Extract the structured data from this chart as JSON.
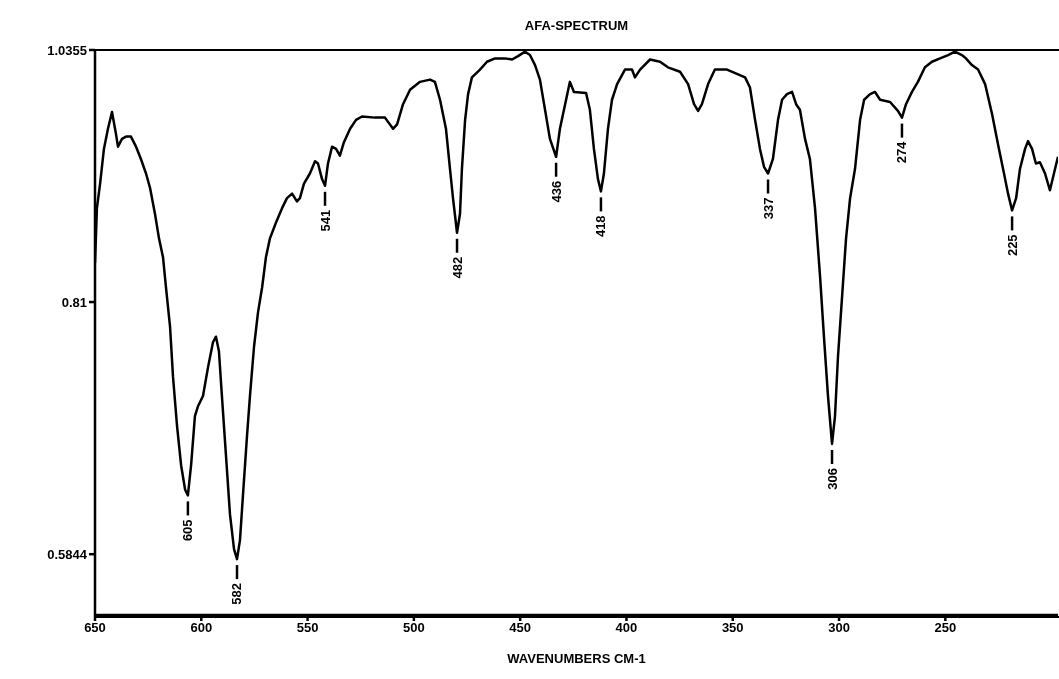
{
  "chart_data": {
    "type": "line",
    "title": "AFA-SPECTRUM",
    "xlabel": "WAVENUMBERS CM-1",
    "xlim": [
      650,
      197
    ],
    "xticks": [
      650,
      600,
      550,
      500,
      450,
      400,
      350,
      300,
      250
    ],
    "ylim": [
      0.53,
      1.0355
    ],
    "yticks": [
      0.5844,
      0.81,
      1.0355
    ],
    "x": [
      650,
      649.1,
      647.6,
      645.8,
      643.9,
      642.0,
      640.1,
      639.2,
      637.3,
      635.4,
      633.1,
      630.7,
      628.4,
      626.0,
      624.1,
      621.8,
      619.9,
      618.0,
      616.6,
      614.7,
      613.3,
      611.4,
      609.5,
      607.6,
      606.3,
      604.8,
      603.0,
      601.5,
      599.2,
      596.8,
      594.5,
      593.1,
      591.7,
      590.3,
      588.4,
      586.5,
      584.6,
      583.2,
      581.8,
      580.4,
      578.5,
      577.1,
      575.2,
      573.3,
      571.4,
      569.6,
      567.7,
      564.9,
      562.0,
      559.7,
      557.3,
      555.0,
      553.6,
      551.7,
      548.9,
      546.5,
      545.1,
      543.2,
      541.8,
      540.4,
      538.5,
      536.6,
      534.8,
      532.9,
      530.0,
      527.2,
      524.4,
      518.3,
      513.6,
      509.8,
      507.9,
      505.1,
      501.8,
      497.1,
      492.4,
      490.1,
      487.7,
      484.9,
      483.0,
      481.6,
      479.7,
      478.3,
      477.4,
      475.9,
      474.5,
      472.7,
      468.9,
      465.6,
      461.8,
      457.1,
      453.8,
      451.0,
      447.7,
      445.4,
      443.0,
      440.7,
      438.3,
      436.0,
      433.1,
      431.3,
      428.4,
      426.6,
      424.7,
      419.0,
      417.2,
      415.3,
      413.4,
      412.0,
      410.6,
      408.7,
      406.8,
      404.4,
      400.7,
      397.4,
      396.0,
      393.6,
      388.9,
      384.2,
      380.5,
      374.8,
      371.0,
      368.2,
      366.3,
      364.5,
      361.6,
      358.4,
      352.7,
      344.2,
      341.9,
      339.5,
      337.2,
      335.3,
      333.4,
      331.1,
      328.7,
      326.8,
      324.5,
      322.1,
      320.2,
      318.4,
      316.0,
      313.7,
      311.3,
      308.9,
      307.1,
      305.2,
      303.3,
      301.9,
      300.5,
      298.6,
      296.7,
      294.8,
      292.5,
      290.1,
      288.2,
      285.4,
      283.1,
      280.7,
      276.0,
      272.3,
      270.4,
      268.5,
      265.7,
      262.9,
      259.6,
      256.3,
      252.5,
      248.7,
      245.5,
      242.2,
      240.3,
      237.5,
      234.6,
      231.3,
      228.0,
      225.2,
      222.4,
      220.5,
      218.6,
      216.7,
      214.9,
      212.5,
      211.1,
      209.2,
      207.4,
      205.5,
      203.1,
      200.8,
      198.4,
      197.0
    ],
    "series": [
      {
        "color": "#000000",
        "values": [
          0.845,
          0.894,
          0.916,
          0.947,
          0.965,
          0.98,
          0.96,
          0.949,
          0.956,
          0.958,
          0.958,
          0.949,
          0.938,
          0.925,
          0.912,
          0.889,
          0.867,
          0.85,
          0.823,
          0.788,
          0.743,
          0.699,
          0.664,
          0.642,
          0.637,
          0.664,
          0.708,
          0.717,
          0.726,
          0.752,
          0.774,
          0.779,
          0.766,
          0.726,
          0.673,
          0.62,
          0.589,
          0.58,
          0.597,
          0.637,
          0.69,
          0.726,
          0.77,
          0.801,
          0.823,
          0.85,
          0.867,
          0.881,
          0.894,
          0.903,
          0.907,
          0.9,
          0.903,
          0.916,
          0.925,
          0.936,
          0.934,
          0.92,
          0.914,
          0.934,
          0.949,
          0.947,
          0.941,
          0.953,
          0.965,
          0.973,
          0.976,
          0.975,
          0.975,
          0.965,
          0.969,
          0.987,
          1.0,
          1.007,
          1.009,
          1.007,
          0.991,
          0.965,
          0.929,
          0.903,
          0.872,
          0.889,
          0.929,
          0.973,
          0.996,
          1.011,
          1.018,
          1.025,
          1.028,
          1.028,
          1.027,
          1.03,
          1.034,
          1.031,
          1.022,
          1.009,
          0.982,
          0.956,
          0.94,
          0.965,
          0.991,
          1.007,
          0.998,
          0.997,
          0.982,
          0.947,
          0.92,
          0.909,
          0.925,
          0.965,
          0.991,
          1.005,
          1.018,
          1.018,
          1.011,
          1.018,
          1.027,
          1.025,
          1.02,
          1.016,
          1.005,
          0.987,
          0.981,
          0.987,
          1.005,
          1.018,
          1.018,
          1.011,
          1.002,
          0.973,
          0.947,
          0.931,
          0.925,
          0.938,
          0.973,
          0.991,
          0.996,
          0.998,
          0.987,
          0.982,
          0.956,
          0.938,
          0.894,
          0.832,
          0.779,
          0.726,
          0.683,
          0.708,
          0.761,
          0.814,
          0.867,
          0.903,
          0.929,
          0.973,
          0.991,
          0.996,
          0.998,
          0.991,
          0.989,
          0.981,
          0.975,
          0.987,
          0.998,
          1.007,
          1.02,
          1.025,
          1.028,
          1.031,
          1.034,
          1.031,
          1.028,
          1.022,
          1.018,
          1.005,
          0.978,
          0.951,
          0.925,
          0.907,
          0.892,
          0.903,
          0.929,
          0.947,
          0.954,
          0.947,
          0.934,
          0.935,
          0.925,
          0.91,
          0.929,
          0.94
        ]
      }
    ],
    "annotations": [
      {
        "text": "605",
        "x": 606.3,
        "y": 0.637
      },
      {
        "text": "582",
        "x": 583.2,
        "y": 0.58
      },
      {
        "text": "541",
        "x": 541.8,
        "y": 0.914
      },
      {
        "text": "482",
        "x": 479.7,
        "y": 0.872
      },
      {
        "text": "436",
        "x": 433.1,
        "y": 0.94
      },
      {
        "text": "418",
        "x": 412.0,
        "y": 0.909
      },
      {
        "text": "337",
        "x": 333.4,
        "y": 0.925
      },
      {
        "text": "306",
        "x": 303.3,
        "y": 0.683
      },
      {
        "text": "274",
        "x": 270.4,
        "y": 0.975
      },
      {
        "text": "225",
        "x": 218.6,
        "y": 0.892
      }
    ]
  }
}
